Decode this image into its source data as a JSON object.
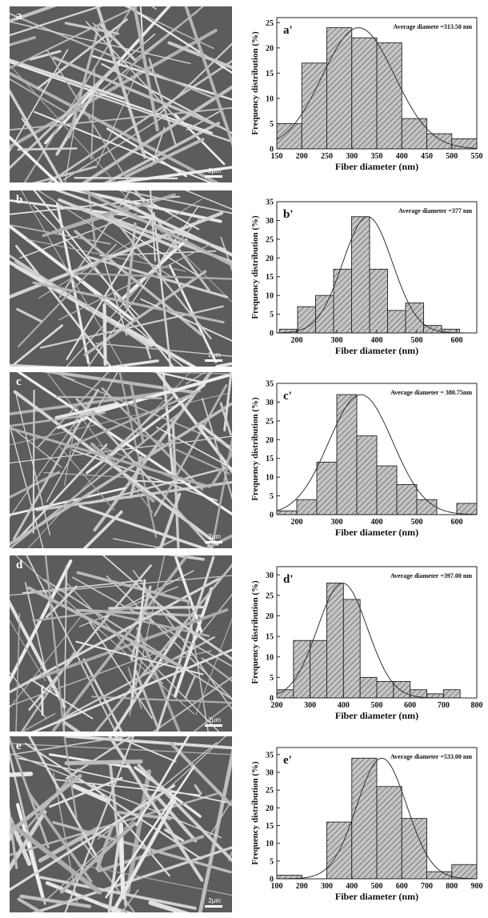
{
  "panels": [
    {
      "sem_letter": "a",
      "scale_label": "2μm",
      "chart_data": {
        "type": "bar",
        "panel_label": "a'",
        "annotation": "Average diamete =313.50 nm",
        "xlabel": "Fiber diameter (nm)",
        "ylabel": "Frequency distribution (%)",
        "xlim": [
          150,
          550
        ],
        "ylim": [
          0,
          26
        ],
        "xticks": [
          150,
          200,
          250,
          300,
          350,
          400,
          450,
          500,
          550
        ],
        "yticks": [
          0,
          5,
          10,
          15,
          20,
          25
        ],
        "bin_width": 50,
        "bins": [
          {
            "x0": 150,
            "x1": 200,
            "value": 5
          },
          {
            "x0": 200,
            "x1": 250,
            "value": 17
          },
          {
            "x0": 250,
            "x1": 300,
            "value": 24
          },
          {
            "x0": 300,
            "x1": 350,
            "value": 22
          },
          {
            "x0": 350,
            "x1": 400,
            "value": 21
          },
          {
            "x0": 400,
            "x1": 450,
            "value": 6
          },
          {
            "x0": 450,
            "x1": 500,
            "value": 3
          },
          {
            "x0": 500,
            "x1": 550,
            "value": 2
          }
        ],
        "fit": {
          "mean": 313.5,
          "peak": 24,
          "sigma": 72
        }
      }
    },
    {
      "sem_letter": "b",
      "scale_label": "2μm",
      "chart_data": {
        "type": "bar",
        "panel_label": "b'",
        "annotation": "Average diameter =377 nm",
        "xlabel": "Fiber diameter (nm)",
        "ylabel": "Frequency distribution (%)",
        "xlim": [
          150,
          650
        ],
        "ylim": [
          0,
          35
        ],
        "xticks": [
          200,
          300,
          400,
          500,
          600
        ],
        "yticks": [
          0,
          5,
          10,
          15,
          20,
          25,
          30,
          35
        ],
        "bin_width": 45,
        "bins": [
          {
            "x0": 157,
            "x1": 202,
            "value": 1
          },
          {
            "x0": 202,
            "x1": 247,
            "value": 7
          },
          {
            "x0": 247,
            "x1": 292,
            "value": 10
          },
          {
            "x0": 292,
            "x1": 337,
            "value": 17
          },
          {
            "x0": 337,
            "x1": 382,
            "value": 31
          },
          {
            "x0": 382,
            "x1": 427,
            "value": 17
          },
          {
            "x0": 427,
            "x1": 472,
            "value": 6
          },
          {
            "x0": 472,
            "x1": 517,
            "value": 8
          },
          {
            "x0": 517,
            "x1": 562,
            "value": 2
          },
          {
            "x0": 562,
            "x1": 607,
            "value": 1
          }
        ],
        "fit": {
          "mean": 377,
          "peak": 31,
          "sigma": 62
        }
      }
    },
    {
      "sem_letter": "c",
      "scale_label": "2μm",
      "chart_data": {
        "type": "bar",
        "panel_label": "c'",
        "annotation": "Average diameter = 380.75nm",
        "xlabel": "Fiber diameter (nm)",
        "ylabel": "Frequency distribution (%)",
        "xlim": [
          150,
          650
        ],
        "ylim": [
          0,
          35
        ],
        "xticks": [
          200,
          300,
          400,
          500,
          600
        ],
        "yticks": [
          0,
          5,
          10,
          15,
          20,
          25,
          30,
          35
        ],
        "bin_width": 50,
        "bins": [
          {
            "x0": 150,
            "x1": 200,
            "value": 1
          },
          {
            "x0": 200,
            "x1": 250,
            "value": 4
          },
          {
            "x0": 250,
            "x1": 300,
            "value": 14
          },
          {
            "x0": 300,
            "x1": 350,
            "value": 32
          },
          {
            "x0": 350,
            "x1": 400,
            "value": 21
          },
          {
            "x0": 400,
            "x1": 450,
            "value": 13
          },
          {
            "x0": 450,
            "x1": 500,
            "value": 8
          },
          {
            "x0": 500,
            "x1": 550,
            "value": 4
          },
          {
            "x0": 550,
            "x1": 600,
            "value": 0
          },
          {
            "x0": 600,
            "x1": 650,
            "value": 3
          }
        ],
        "fit": {
          "mean": 360,
          "peak": 32,
          "sigma": 80
        }
      }
    },
    {
      "sem_letter": "d",
      "scale_label": "2μm",
      "chart_data": {
        "type": "bar",
        "panel_label": "d'",
        "annotation": "Average diameter =397.00 nm",
        "xlabel": "Fiber diameter (nm)",
        "ylabel": "Frequency distribution (%)",
        "xlim": [
          200,
          800
        ],
        "ylim": [
          0,
          32
        ],
        "xticks": [
          200,
          300,
          400,
          500,
          600,
          700,
          800
        ],
        "yticks": [
          0,
          5,
          10,
          15,
          20,
          25,
          30
        ],
        "bin_width": 50,
        "bins": [
          {
            "x0": 200,
            "x1": 250,
            "value": 2
          },
          {
            "x0": 250,
            "x1": 300,
            "value": 14
          },
          {
            "x0": 300,
            "x1": 350,
            "value": 14
          },
          {
            "x0": 350,
            "x1": 400,
            "value": 28
          },
          {
            "x0": 400,
            "x1": 450,
            "value": 24
          },
          {
            "x0": 450,
            "x1": 500,
            "value": 5
          },
          {
            "x0": 500,
            "x1": 550,
            "value": 4
          },
          {
            "x0": 550,
            "x1": 600,
            "value": 4
          },
          {
            "x0": 600,
            "x1": 650,
            "value": 2
          },
          {
            "x0": 650,
            "x1": 700,
            "value": 1
          },
          {
            "x0": 700,
            "x1": 750,
            "value": 2
          }
        ],
        "fit": {
          "mean": 397,
          "peak": 28,
          "sigma": 75
        }
      }
    },
    {
      "sem_letter": "e",
      "scale_label": "2μm",
      "chart_data": {
        "type": "bar",
        "panel_label": "e'",
        "annotation": "Average diameter =533.00 nm",
        "xlabel": "Fiber diameter (nm)",
        "ylabel": "Frequency distribution (%)",
        "xlim": [
          100,
          900
        ],
        "ylim": [
          0,
          37
        ],
        "xticks": [
          100,
          200,
          300,
          400,
          500,
          600,
          700,
          800,
          900
        ],
        "yticks": [
          0,
          5,
          10,
          15,
          20,
          25,
          30,
          35
        ],
        "bin_width": 100,
        "bins": [
          {
            "x0": 100,
            "x1": 200,
            "value": 1
          },
          {
            "x0": 200,
            "x1": 300,
            "value": 0
          },
          {
            "x0": 300,
            "x1": 400,
            "value": 16
          },
          {
            "x0": 400,
            "x1": 500,
            "value": 34
          },
          {
            "x0": 500,
            "x1": 600,
            "value": 26
          },
          {
            "x0": 600,
            "x1": 700,
            "value": 17
          },
          {
            "x0": 700,
            "x1": 800,
            "value": 2
          },
          {
            "x0": 800,
            "x1": 900,
            "value": 4
          }
        ],
        "fit": {
          "mean": 520,
          "peak": 34,
          "sigma": 100
        }
      }
    }
  ],
  "colors": {
    "bar_fill": "#c4c4c4",
    "stroke": "#222222",
    "sem_background": "#5c5c5c",
    "fiber": "#dcdcdc"
  }
}
